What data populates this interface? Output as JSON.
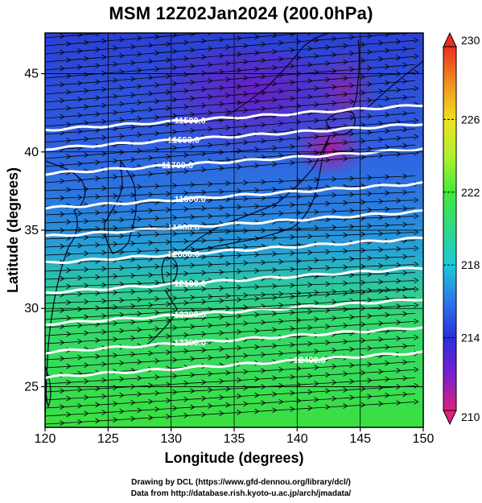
{
  "title": "MSM 12Z02Jan2024 (200.0hPa)",
  "credits": {
    "line1": "Drawing by DCL (https://www.gfd-dennou.org/library/dcl/)",
    "line2": "Data from http://database.rish.kyoto-u.ac.jp/arch/jmadata/"
  },
  "map": {
    "xlabel": "Longitude (degrees)",
    "ylabel": "Latitude  (degrees)",
    "lon_range": [
      120,
      150
    ],
    "lat_range": [
      22.4,
      47.6
    ],
    "lon_ticks": [
      "120",
      "125",
      "130",
      "135",
      "140",
      "145",
      "150"
    ],
    "lat_ticks": [
      "25",
      "30",
      "35",
      "40",
      "45"
    ],
    "grid": true,
    "wind": "westerly streamlines (black arrows)",
    "shading_field": "temperature (K)",
    "contours": [
      {
        "label": "11500.0",
        "lat": 40.0
      },
      {
        "label": "11600.0",
        "lat": 38.8
      },
      {
        "label": "11700.0",
        "lat": 37.2
      },
      {
        "label": "11800.0",
        "lat": 35.0
      },
      {
        "label": "11900.0",
        "lat": 33.2
      },
      {
        "label": "12000.0",
        "lat": 31.5
      },
      {
        "label": "12100.0",
        "lat": 29.6
      },
      {
        "label": "12200.0",
        "lat": 27.6
      },
      {
        "label": "12300.0",
        "lat": 25.8
      },
      {
        "label": "12400.0",
        "lat": 24.2
      }
    ]
  },
  "colorbar": {
    "range": [
      210,
      230
    ],
    "labels": [
      "230",
      "226",
      "222",
      "218",
      "214",
      "210"
    ],
    "colors": {
      "210": "#d8187c",
      "212": "#7a1fd0",
      "214": "#2a2fd8",
      "216": "#2a78e8",
      "218": "#1ec8d8",
      "220": "#2ed888",
      "222": "#44e83a",
      "224": "#b0f030",
      "226": "#f0e020",
      "228": "#f09020",
      "230": "#e83020"
    }
  },
  "chart_data": {
    "type": "heatmap",
    "title": "MSM 12Z02Jan2024 (200.0hPa)",
    "xlabel": "Longitude (degrees)",
    "ylabel": "Latitude  (degrees)",
    "xlim": [
      120,
      150
    ],
    "ylim": [
      22.4,
      47.6
    ],
    "color_scale": [
      210,
      230
    ],
    "contour_levels": [
      11500,
      11600,
      11700,
      11800,
      11900,
      12000,
      12100,
      12200,
      12300,
      12400
    ]
  }
}
